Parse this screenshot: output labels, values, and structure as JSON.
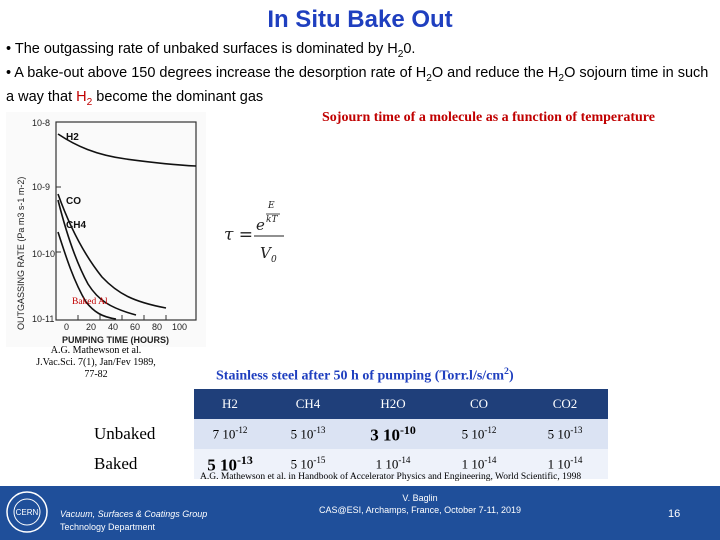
{
  "slide": {
    "title": "In Situ Bake Out",
    "bullet1": {
      "text": "• The outgassing rate of unbaked surfaces is dominated by H",
      "sub": "2",
      "tail": "0."
    },
    "bullet2": {
      "p1": "• A bake-out above 150 degrees increase the desorption rate of H",
      "s1": "2",
      "p2": "O and reduce the H",
      "s2": "2",
      "p3": "O sojourn time in such a way that ",
      "red_text": "H",
      "red_sub": "2",
      "red_tail": " become the dominant gas"
    },
    "subtitle": "Sojourn time of a molecule as a function of temperature"
  },
  "figure": {
    "curve_labels": [
      "H2",
      "CO",
      "CH4"
    ],
    "annotation": "Baked Al",
    "y_axis_label": "OUTGASSING RATE (Pa m3 s-1 m-2)",
    "y_ticks": [
      "10-8",
      "10-9",
      "10-10",
      "10-11"
    ],
    "x_ticks": [
      "0",
      "20",
      "40",
      "60",
      "80",
      "100"
    ],
    "x_axis_label": "PUMPING TIME (HOURS)",
    "reference_line1": "A.G. Mathewson et al.",
    "reference_line2": "J.Vac.Sci. 7(1), Jan/Fev 1989, 77-82"
  },
  "formula": {
    "lhs": "τ =",
    "numerator_base": "e",
    "exp_top": "E",
    "exp_bottom": "kT",
    "denominator": "V",
    "denominator_sub": "0"
  },
  "table": {
    "caption": "Stainless steel after 50 h of pumping (Torr.l/s/cm",
    "caption_sup": "2",
    "caption_tail": ")",
    "columns": [
      "H2",
      "CH4",
      "H2O",
      "CO",
      "CO2"
    ],
    "rows": [
      {
        "label": "Unbaked",
        "values": [
          {
            "base": "7 10",
            "exp": "-12"
          },
          {
            "base": "5 10",
            "exp": "-13"
          },
          {
            "base": "3 10",
            "exp": "-10"
          },
          {
            "base": "5 10",
            "exp": "-12"
          },
          {
            "base": "5 10",
            "exp": "-13"
          }
        ]
      },
      {
        "label": "Baked",
        "values": [
          {
            "base": "5 10",
            "exp": "-13"
          },
          {
            "base": "5 10",
            "exp": "-15"
          },
          {
            "base": "1 10",
            "exp": "-14"
          },
          {
            "base": "1 10",
            "exp": "-14"
          },
          {
            "base": "1 10",
            "exp": "-14"
          }
        ]
      }
    ],
    "reference": "A.G. Mathewson et al. in Handbook of Accelerator Physics and Engineering, World Scientific, 1998"
  },
  "footer": {
    "logo_text": "CERN",
    "left_line1": "Vacuum, Surfaces & Coatings Group",
    "left_line2": "Technology Department",
    "center_line1": "V. Baglin",
    "center_line2": "CAS@ESI, Archamps, France, October 7-11, 2019",
    "page_number": "16"
  },
  "colors": {
    "title": "#1f3fbf",
    "highlight": "#c00000",
    "footer_bg": "#1f4f9a",
    "table_header": "#1f3f7a"
  }
}
